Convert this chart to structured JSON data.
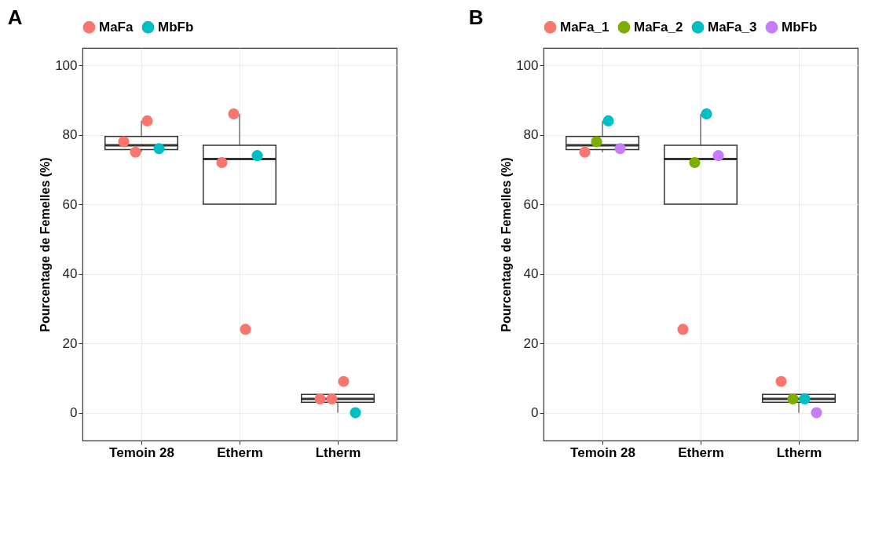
{
  "chart_data": [
    {
      "type": "box",
      "title": "A",
      "categories": [
        "Temoin 28",
        "Etherm",
        "Ltherm"
      ],
      "ylabel": "Pourcentage de Femelles (%)",
      "ylim": [
        -8,
        105
      ],
      "yticks": [
        0,
        20,
        40,
        60,
        80,
        100
      ],
      "grid": true,
      "legend": "top",
      "marker": "circle",
      "boxes": [
        {
          "low": 75,
          "q1": 75.75,
          "median": 77,
          "q3": 79.5,
          "high": 84
        },
        {
          "low": 60,
          "q1": 60,
          "median": 73,
          "q3": 77,
          "high": 86
        },
        {
          "low": 0,
          "q1": 3,
          "median": 4,
          "q3": 5.25,
          "high": 5.25
        }
      ],
      "series": [
        {
          "name": "MaFa",
          "type": "scatter",
          "color": "#f8766d",
          "x": [
            "Temoin 28",
            "Temoin 28",
            "Temoin 28",
            "Etherm",
            "Etherm",
            "Etherm",
            "Ltherm",
            "Ltherm",
            "Ltherm"
          ],
          "values": [
            78,
            75,
            84,
            72,
            86,
            24,
            4,
            4,
            9
          ]
        },
        {
          "name": "MbFb",
          "type": "scatter",
          "color": "#00bfc4",
          "x": [
            "Temoin 28",
            "Etherm",
            "Ltherm"
          ],
          "values": [
            76,
            74,
            0
          ]
        }
      ]
    },
    {
      "type": "box",
      "title": "B",
      "categories": [
        "Temoin 28",
        "Etherm",
        "Ltherm"
      ],
      "ylabel": "Pourcentage de Femelles (%)",
      "ylim": [
        -8,
        105
      ],
      "yticks": [
        0,
        20,
        40,
        60,
        80,
        100
      ],
      "grid": true,
      "legend": "top",
      "marker": "circle",
      "boxes": [
        {
          "low": 75,
          "q1": 75.75,
          "median": 77,
          "q3": 79.5,
          "high": 84
        },
        {
          "low": 60,
          "q1": 60,
          "median": 73,
          "q3": 77,
          "high": 86
        },
        {
          "low": 0,
          "q1": 3,
          "median": 4,
          "q3": 5.25,
          "high": 5.25
        }
      ],
      "series": [
        {
          "name": "MaFa_1",
          "type": "scatter",
          "color": "#f8766d",
          "x": [
            "Temoin 28",
            "Etherm",
            "Ltherm"
          ],
          "values": [
            75,
            24,
            9
          ]
        },
        {
          "name": "MaFa_2",
          "type": "scatter",
          "color": "#7cae00",
          "x": [
            "Temoin 28",
            "Etherm",
            "Ltherm"
          ],
          "values": [
            78,
            72,
            4
          ]
        },
        {
          "name": "MaFa_3",
          "type": "scatter",
          "color": "#00bfc4",
          "x": [
            "Temoin 28",
            "Etherm",
            "Ltherm"
          ],
          "values": [
            84,
            86,
            4
          ]
        },
        {
          "name": "MbFb",
          "type": "scatter",
          "color": "#c77cff",
          "x": [
            "Temoin 28",
            "Etherm",
            "Ltherm"
          ],
          "values": [
            76,
            74,
            0
          ]
        }
      ]
    }
  ]
}
